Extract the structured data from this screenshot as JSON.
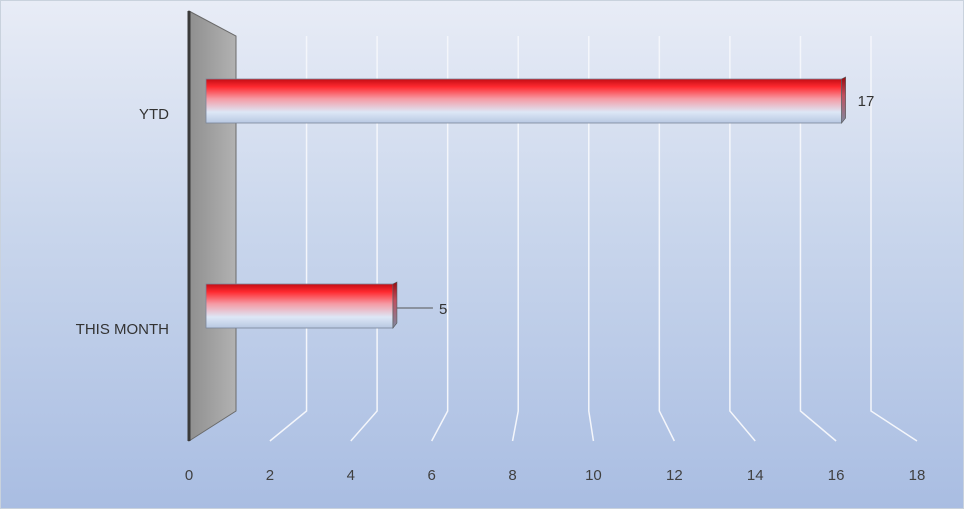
{
  "chart_data": {
    "type": "bar",
    "orientation": "horizontal",
    "style": "3d-cylinder",
    "categories": [
      "YTD",
      "THIS MONTH"
    ],
    "values": [
      17,
      5
    ],
    "data_labels": [
      "17",
      "5"
    ],
    "xlim": [
      0,
      18
    ],
    "x_ticks": [
      "0",
      "2",
      "4",
      "6",
      "8",
      "10",
      "12",
      "14",
      "16",
      "18"
    ],
    "grid": true,
    "legend": "none",
    "colors": {
      "bar_top": "#e8141c",
      "bar_mid": "#f6b5bd",
      "bar_bottom": "#dfe9f7",
      "wall": "#a8a8a8",
      "gridline": "#f4f6fb",
      "text": "#404040",
      "background_top": "#e8ecf6",
      "background_bottom": "#a9bde2"
    }
  }
}
